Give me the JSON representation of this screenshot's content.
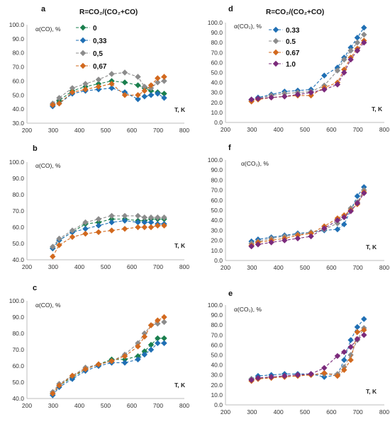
{
  "chart_data": [
    {
      "id": "a",
      "type": "scatter",
      "panel_label": "a",
      "ylabel": "α(CO), %",
      "xlabel": "T, K",
      "xlim": [
        200,
        800
      ],
      "ylim": [
        30,
        100
      ],
      "xticks": [
        200,
        300,
        400,
        500,
        600,
        700,
        800
      ],
      "yticks": [
        "30.0",
        "40.0",
        "50.0",
        "60.0",
        "70.0",
        "80.0",
        "90.0",
        "100.0"
      ],
      "grid": false,
      "legend": {
        "title": "R=CO₂/(CO₂+CO)",
        "placement": "top-center",
        "entries": [
          "0",
          "0,33",
          "0,5",
          "0,67"
        ]
      },
      "series": [
        {
          "name": "0",
          "color": "#1a7f4e",
          "x": [
            298,
            323,
            373,
            423,
            473,
            523,
            573,
            623,
            648,
            673,
            698,
            723
          ],
          "y": [
            43,
            46,
            53,
            56,
            58,
            60,
            59,
            57,
            55,
            53,
            52,
            51
          ]
        },
        {
          "name": "0,33",
          "color": "#1f6fb4",
          "x": [
            298,
            323,
            373,
            423,
            473,
            523,
            573,
            623,
            648,
            673,
            698,
            723
          ],
          "y": [
            42,
            44,
            51,
            53,
            54,
            55,
            52,
            47,
            49,
            50,
            51,
            48
          ]
        },
        {
          "name": "0,5",
          "color": "#8c8c8c",
          "x": [
            298,
            323,
            373,
            423,
            473,
            523,
            573,
            623,
            648,
            673,
            698,
            723
          ],
          "y": [
            44,
            48,
            55,
            58,
            61,
            65,
            66,
            63,
            56,
            55,
            59,
            60
          ]
        },
        {
          "name": "0,67",
          "color": "#d2691e",
          "x": [
            298,
            323,
            373,
            423,
            473,
            523,
            573,
            623,
            648,
            673,
            698,
            723
          ],
          "y": [
            43,
            44,
            52,
            54,
            56,
            58,
            50,
            50,
            53,
            57,
            62,
            63
          ]
        }
      ]
    },
    {
      "id": "b",
      "type": "scatter",
      "panel_label": "b",
      "ylabel": "α(CO), %",
      "xlabel": "T, K",
      "xlim": [
        200,
        800
      ],
      "ylim": [
        40,
        100
      ],
      "xticks": [
        200,
        300,
        400,
        500,
        600,
        700,
        800
      ],
      "yticks": [
        "40.0",
        "50.0",
        "60.0",
        "70.0",
        "80.0",
        "90.0",
        "100.0"
      ],
      "grid": false,
      "series": [
        {
          "name": "",
          "color": "#1a7f4e",
          "x": [
            298,
            323,
            373,
            423,
            473,
            523,
            573,
            623,
            648,
            673,
            698,
            723
          ],
          "y": [
            47,
            52,
            57,
            62,
            63,
            65,
            65,
            64,
            64,
            65,
            65,
            65
          ]
        },
        {
          "name": "",
          "color": "#1f6fb4",
          "x": [
            298,
            323,
            373,
            423,
            473,
            523,
            573,
            623,
            648,
            673,
            698,
            723
          ],
          "y": [
            47,
            52,
            57,
            59,
            61,
            63,
            64,
            63,
            63,
            63,
            62,
            62
          ]
        },
        {
          "name": "",
          "color": "#8c8c8c",
          "x": [
            298,
            323,
            373,
            423,
            473,
            523,
            573,
            623,
            648,
            673,
            698,
            723
          ],
          "y": [
            48,
            53,
            58,
            63,
            65,
            67,
            67,
            67,
            66,
            66,
            66,
            66
          ]
        },
        {
          "name": "",
          "color": "#d2691e",
          "x": [
            298,
            323,
            373,
            423,
            473,
            523,
            573,
            623,
            648,
            673,
            698,
            723
          ],
          "y": [
            42,
            49,
            54,
            56,
            57,
            58,
            59,
            60,
            60,
            60,
            61,
            61
          ]
        }
      ]
    },
    {
      "id": "c",
      "type": "scatter",
      "panel_label": "c",
      "ylabel": "α(CO), %",
      "xlabel": "T, K",
      "xlim": [
        200,
        800
      ],
      "ylim": [
        40,
        100
      ],
      "xticks": [
        200,
        300,
        400,
        500,
        600,
        700,
        800
      ],
      "yticks": [
        "40.0",
        "50.0",
        "60.0",
        "70.0",
        "80.0",
        "90.0",
        "100.0"
      ],
      "grid": false,
      "series": [
        {
          "name": "",
          "color": "#1a7f4e",
          "x": [
            298,
            323,
            373,
            423,
            473,
            523,
            573,
            623,
            648,
            673,
            698,
            723
          ],
          "y": [
            43,
            48,
            53,
            58,
            61,
            64,
            64,
            66,
            69,
            73,
            77,
            77
          ]
        },
        {
          "name": "",
          "color": "#1f6fb4",
          "x": [
            298,
            323,
            373,
            423,
            473,
            523,
            573,
            623,
            648,
            673,
            698,
            723
          ],
          "y": [
            42,
            47,
            52,
            57,
            60,
            62,
            62,
            64,
            67,
            70,
            74,
            74
          ]
        },
        {
          "name": "",
          "color": "#8c8c8c",
          "x": [
            298,
            323,
            373,
            423,
            473,
            523,
            573,
            623,
            648,
            673,
            698,
            723
          ],
          "y": [
            44,
            49,
            54,
            59,
            61,
            63,
            67,
            74,
            80,
            85,
            86,
            87
          ]
        },
        {
          "name": "",
          "color": "#d2691e",
          "x": [
            298,
            323,
            373,
            423,
            473,
            523,
            573,
            623,
            648,
            673,
            698,
            723
          ],
          "y": [
            43,
            48,
            54,
            58,
            61,
            63,
            66,
            72,
            78,
            85,
            88,
            90
          ]
        }
      ]
    },
    {
      "id": "d",
      "type": "scatter",
      "panel_label": "d",
      "ylabel": "α(CO₂), %",
      "xlabel": "T, K",
      "xlim": [
        200,
        800
      ],
      "ylim": [
        0,
        100
      ],
      "xticks": [
        200,
        300,
        400,
        500,
        600,
        700,
        800
      ],
      "yticks": [
        "0.0",
        "10.0",
        "20.0",
        "30.0",
        "40.0",
        "50.0",
        "60.0",
        "70.0",
        "80.0",
        "90.0",
        "100.0"
      ],
      "grid": false,
      "legend": {
        "title": "R=CO₂/(CO₂+CO)",
        "placement": "top-center",
        "entries": [
          "0.33",
          "0.5",
          "0.67",
          "1.0"
        ]
      },
      "series": [
        {
          "name": "0.33",
          "color": "#1f6fb4",
          "x": [
            298,
            323,
            373,
            423,
            473,
            523,
            573,
            623,
            648,
            673,
            698,
            723
          ],
          "y": [
            23,
            25,
            28,
            31,
            32,
            33,
            47,
            55,
            65,
            75,
            85,
            95
          ]
        },
        {
          "name": "0.5",
          "color": "#8c8c8c",
          "x": [
            298,
            323,
            373,
            423,
            473,
            523,
            573,
            623,
            648,
            673,
            698,
            723
          ],
          "y": [
            22,
            24,
            27,
            29,
            30,
            31,
            37,
            52,
            63,
            72,
            80,
            88
          ]
        },
        {
          "name": "0.67",
          "color": "#d2691e",
          "x": [
            298,
            323,
            373,
            423,
            473,
            523,
            573,
            623,
            648,
            673,
            698,
            723
          ],
          "y": [
            21,
            23,
            25,
            26,
            27,
            27,
            35,
            40,
            53,
            65,
            74,
            82
          ]
        },
        {
          "name": "1.0",
          "color": "#7b2a7b",
          "x": [
            298,
            323,
            373,
            423,
            473,
            523,
            573,
            623,
            648,
            673,
            698,
            723
          ],
          "y": [
            23,
            24,
            25,
            26,
            28,
            30,
            33,
            38,
            50,
            63,
            72,
            80
          ]
        }
      ]
    },
    {
      "id": "f",
      "type": "scatter",
      "panel_label": "f",
      "ylabel": "α(CO₂), %",
      "xlabel": "T, K",
      "xlim": [
        200,
        800
      ],
      "ylim": [
        0,
        100
      ],
      "xticks": [
        200,
        300,
        400,
        500,
        600,
        700,
        800
      ],
      "yticks": [
        "0.0",
        "10.0",
        "20.0",
        "30.0",
        "40.0",
        "50.0",
        "60.0",
        "70.0",
        "80.0",
        "90.0",
        "100.0"
      ],
      "grid": false,
      "series": [
        {
          "name": "",
          "color": "#1f6fb4",
          "x": [
            298,
            323,
            373,
            423,
            473,
            523,
            573,
            623,
            648,
            673,
            698,
            723
          ],
          "y": [
            19,
            21,
            23,
            25,
            27,
            28,
            30,
            31,
            36,
            50,
            64,
            73
          ]
        },
        {
          "name": "",
          "color": "#8c8c8c",
          "x": [
            298,
            323,
            373,
            423,
            473,
            523,
            573,
            623,
            648,
            673,
            698,
            723
          ],
          "y": [
            17,
            19,
            22,
            24,
            26,
            28,
            31,
            37,
            43,
            52,
            58,
            70
          ]
        },
        {
          "name": "",
          "color": "#d2691e",
          "x": [
            298,
            323,
            373,
            423,
            473,
            523,
            573,
            623,
            648,
            673,
            698,
            723
          ],
          "y": [
            15,
            18,
            20,
            22,
            25,
            27,
            34,
            42,
            45,
            50,
            56,
            68
          ]
        },
        {
          "name": "",
          "color": "#7b2a7b",
          "x": [
            298,
            323,
            373,
            423,
            473,
            523,
            573,
            623,
            648,
            673,
            698,
            723
          ],
          "y": [
            14,
            16,
            18,
            20,
            22,
            24,
            32,
            40,
            43,
            49,
            57,
            67
          ]
        }
      ]
    },
    {
      "id": "e",
      "type": "scatter",
      "panel_label": "e",
      "ylabel": "α(CO₂), %",
      "xlabel": "T, K",
      "xlim": [
        200,
        800
      ],
      "ylim": [
        0,
        100
      ],
      "xticks": [
        200,
        300,
        400,
        500,
        600,
        700,
        800
      ],
      "yticks": [
        "0.0",
        "10.0",
        "20.0",
        "30.0",
        "40.0",
        "50.0",
        "60.0",
        "70.0",
        "80.0",
        "90.0",
        "100.0"
      ],
      "grid": false,
      "series": [
        {
          "name": "",
          "color": "#1f6fb4",
          "x": [
            298,
            323,
            373,
            423,
            473,
            523,
            573,
            623,
            648,
            673,
            698,
            723
          ],
          "y": [
            26,
            29,
            30,
            31,
            31,
            31,
            28,
            30,
            45,
            65,
            78,
            86
          ]
        },
        {
          "name": "",
          "color": "#8c8c8c",
          "x": [
            298,
            323,
            373,
            423,
            473,
            523,
            573,
            623,
            648,
            673,
            698,
            723
          ],
          "y": [
            26,
            26,
            28,
            29,
            30,
            30,
            31,
            31,
            38,
            50,
            65,
            77
          ]
        },
        {
          "name": "",
          "color": "#d2691e",
          "x": [
            298,
            323,
            373,
            423,
            473,
            523,
            573,
            623,
            648,
            673,
            698,
            723
          ],
          "y": [
            24,
            26,
            27,
            28,
            29,
            30,
            32,
            29,
            35,
            45,
            73,
            75
          ]
        },
        {
          "name": "",
          "color": "#7b2a7b",
          "x": [
            298,
            323,
            373,
            423,
            473,
            523,
            573,
            623,
            648,
            673,
            698,
            723
          ],
          "y": [
            25,
            27,
            28,
            29,
            30,
            31,
            37,
            49,
            53,
            58,
            66,
            70
          ]
        }
      ]
    }
  ]
}
